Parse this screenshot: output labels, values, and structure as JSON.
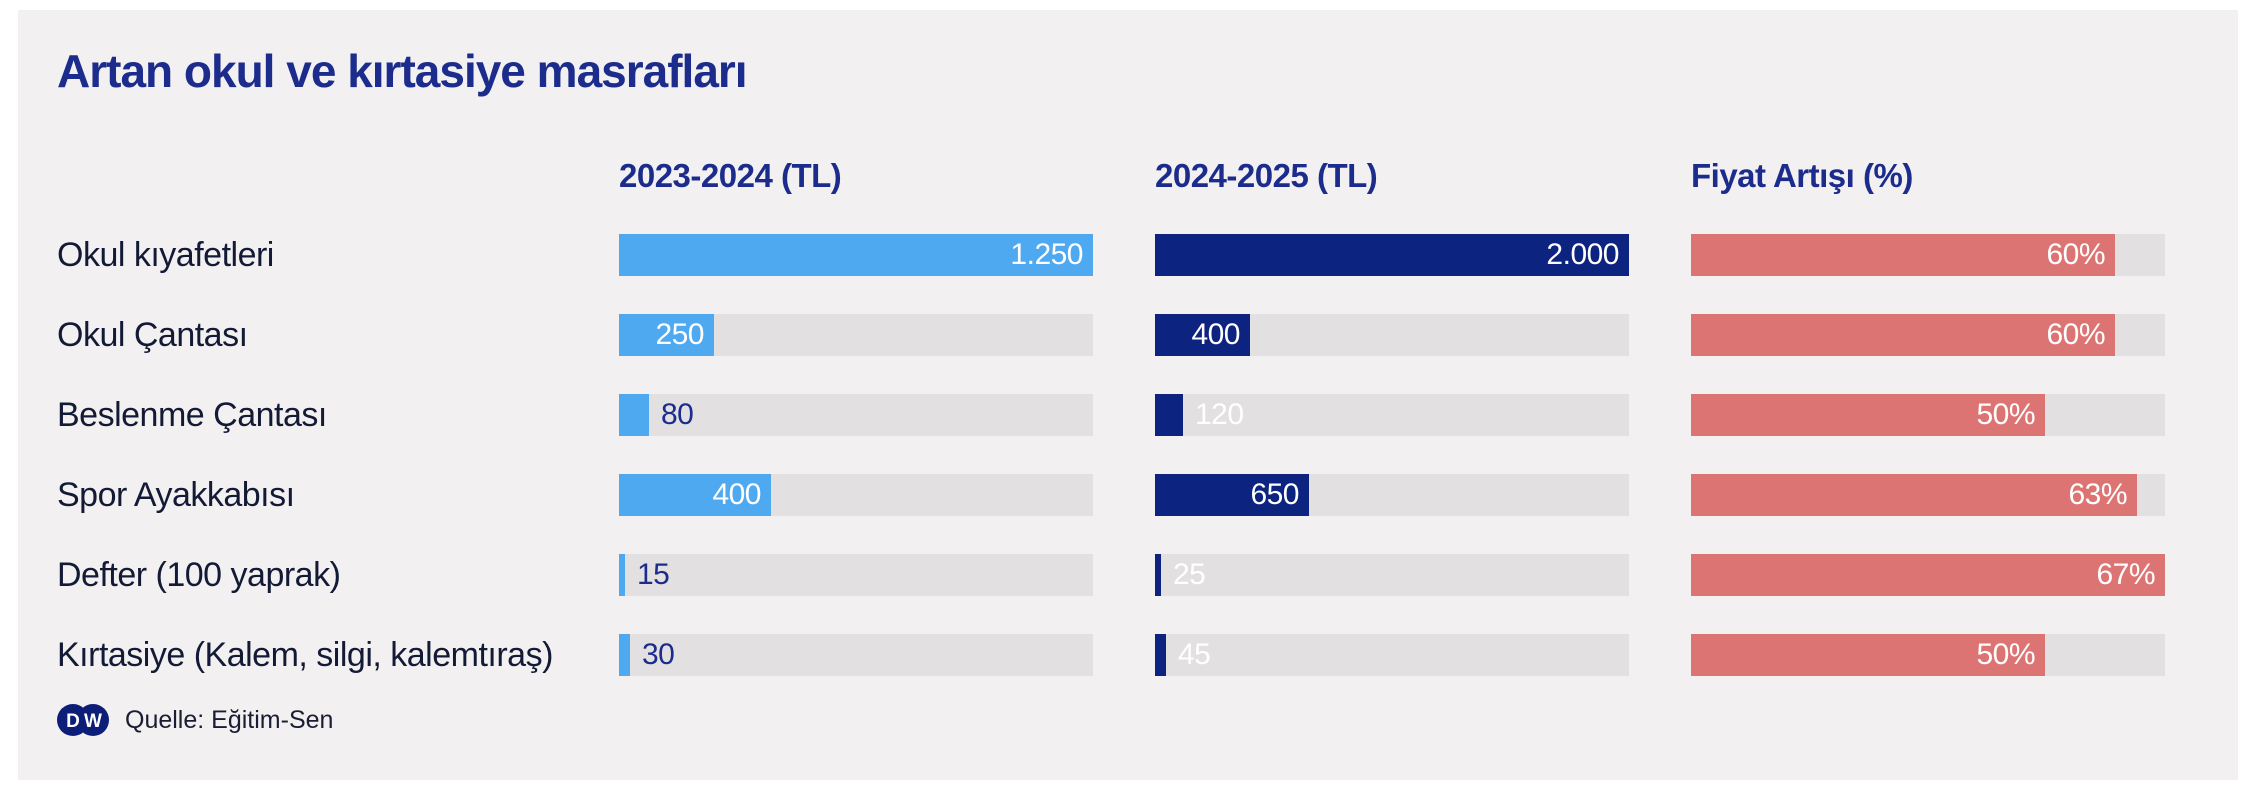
{
  "title": "Artan okul ve kırtasiye masrafları",
  "source": {
    "label": "Quelle: Eğitim-Sen",
    "logo_left_letter": "D",
    "logo_right_letter": "W"
  },
  "colors": {
    "page_background": "#FFFFFF",
    "card_background": "#F2F0F0",
    "track": "#E2E0E0",
    "heading_navy": "#1C2C8C",
    "row_label_ink": "#131A35",
    "bar_blue": "#4FA9F1",
    "bar_navy": "#0C2380",
    "bar_salmon": "#DC7473",
    "logo_navy": "#0D1E78",
    "value_inside": "#FFFFFF"
  },
  "chart_data": {
    "type": "bar",
    "title": "Artan okul ve kırtasiye masrafları",
    "orientation": "horizontal",
    "grid": false,
    "legend_position": "none",
    "track_color": "#E2E0E0",
    "categories": [
      "Okul kıyafetleri",
      "Okul Çantası",
      "Beslenme Çantası",
      "Spor Ayakkabısı",
      "Defter (100 yaprak)",
      "Kırtasiye (Kalem, silgi, kalemtıraş)"
    ],
    "series": [
      {
        "name": "2023-2024 (TL)",
        "values": [
          1250,
          250,
          80,
          400,
          15,
          30
        ],
        "display": [
          "1.250",
          "250",
          "80",
          "400",
          "15",
          "30"
        ],
        "axis_max": 1250,
        "bar_color": "#4FA9F1",
        "outside_label_color": "#1C2C8C"
      },
      {
        "name": "2024-2025 (TL)",
        "values": [
          2000,
          400,
          120,
          650,
          25,
          45
        ],
        "display": [
          "2.000",
          "400",
          "120",
          "650",
          "25",
          "45"
        ],
        "axis_max": 2000,
        "bar_color": "#0C2380",
        "outside_label_color": "#FFFFFF"
      },
      {
        "name": "Fiyat Artışı (%)",
        "values": [
          60,
          60,
          50,
          63,
          67,
          50
        ],
        "display": [
          "60%",
          "60%",
          "50%",
          "63%",
          "67%",
          "50%"
        ],
        "axis_max": 67,
        "bar_color": "#DC7473",
        "outside_label_color": "#1C2C8C"
      }
    ]
  }
}
